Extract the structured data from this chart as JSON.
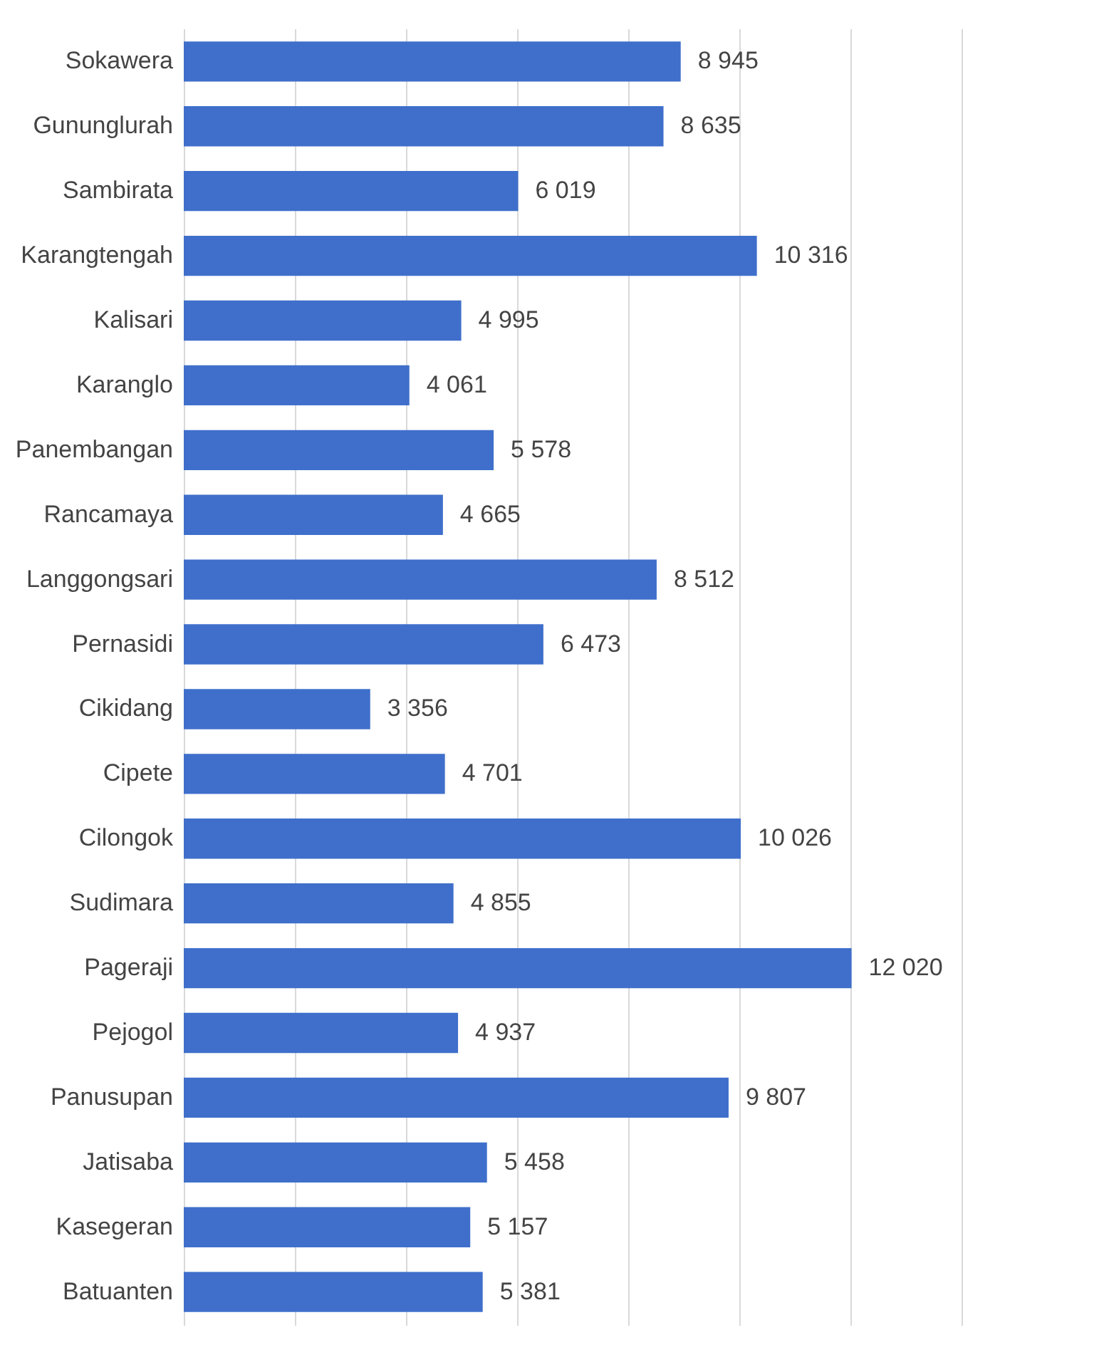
{
  "chart_data": {
    "type": "bar",
    "orientation": "horizontal",
    "categories": [
      "Sokawera",
      "Gununglurah",
      "Sambirata",
      "Karangtengah",
      "Kalisari",
      "Karanglo",
      "Panembangan",
      "Rancamaya",
      "Langgongsari",
      "Pernasidi",
      "Cikidang",
      "Cipete",
      "Cilongok",
      "Sudimara",
      "Pageraji",
      "Pejogol",
      "Panusupan",
      "Jatisaba",
      "Kasegeran",
      "Batuanten"
    ],
    "values": [
      8945,
      8635,
      6019,
      10316,
      4995,
      4061,
      5578,
      4665,
      8512,
      6473,
      3356,
      4701,
      10026,
      4855,
      12020,
      4937,
      9807,
      5458,
      5157,
      5381
    ],
    "value_labels": [
      "8 945",
      "8 635",
      "6 019",
      "10 316",
      "4 995",
      "4 061",
      "5 578",
      "4 665",
      "8 512",
      "6 473",
      "3 356",
      "4 701",
      "10 026",
      "4 855",
      "12 020",
      "4 937",
      "9 807",
      "5 458",
      "5 157",
      "5 381"
    ],
    "color": "#3f6fcb",
    "xlim": [
      0,
      14000
    ],
    "xticks": [
      {
        "value": 0,
        "label": null
      },
      {
        "value": 2000,
        "label": null
      },
      {
        "value": 4000,
        "label": null
      },
      {
        "value": 6000,
        "label": null
      },
      {
        "value": 8000,
        "label": null
      },
      {
        "value": 10000,
        "label": null
      },
      {
        "value": 12000,
        "label": null
      },
      {
        "value": 14000,
        "label": null
      }
    ],
    "grid": "x",
    "tick_labels": "y"
  }
}
